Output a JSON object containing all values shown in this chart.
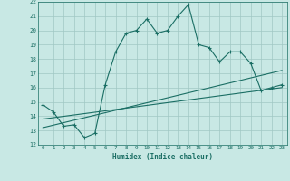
{
  "xlabel": "Humidex (Indice chaleur)",
  "xlim": [
    -0.5,
    23.5
  ],
  "ylim": [
    12,
    22
  ],
  "xticks": [
    0,
    1,
    2,
    3,
    4,
    5,
    6,
    7,
    8,
    9,
    10,
    11,
    12,
    13,
    14,
    15,
    16,
    17,
    18,
    19,
    20,
    21,
    22,
    23
  ],
  "yticks": [
    12,
    13,
    14,
    15,
    16,
    17,
    18,
    19,
    20,
    21,
    22
  ],
  "bg_color": "#c8e8e4",
  "line_color": "#1a6e64",
  "grid_color": "#a0c8c4",
  "main_line_x": [
    0,
    1,
    2,
    3,
    4,
    5,
    6,
    7,
    8,
    9,
    10,
    11,
    12,
    13,
    14,
    15,
    16,
    17,
    18,
    19,
    20,
    21,
    22,
    23
  ],
  "main_line_y": [
    14.8,
    14.3,
    13.3,
    13.4,
    12.5,
    12.8,
    16.2,
    18.5,
    19.8,
    20.0,
    20.8,
    19.8,
    20.0,
    21.0,
    21.8,
    19.0,
    18.8,
    17.8,
    18.5,
    18.5,
    17.7,
    15.8,
    16.0,
    16.2
  ],
  "trend1_x": [
    0,
    23
  ],
  "trend1_y": [
    13.2,
    17.2
  ],
  "trend2_x": [
    0,
    23
  ],
  "trend2_y": [
    13.8,
    16.0
  ],
  "marker_size": 3,
  "line_width": 0.8
}
